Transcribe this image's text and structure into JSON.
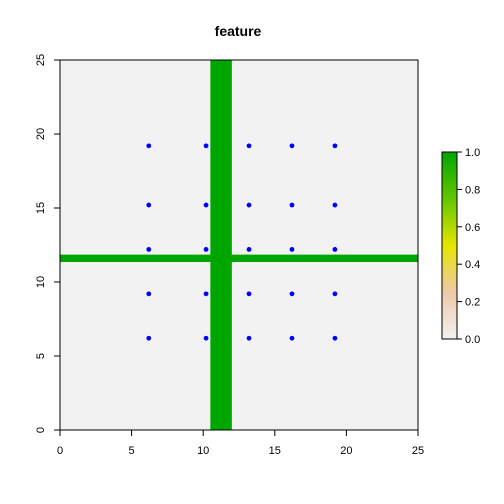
{
  "chart_data": {
    "type": "scatter",
    "title": "feature",
    "xlabel": "",
    "ylabel": "",
    "xlim": [
      0,
      25
    ],
    "ylim": [
      0,
      25
    ],
    "x_ticks": [
      0,
      5,
      10,
      15,
      20,
      25
    ],
    "y_ticks": [
      0,
      5,
      10,
      15,
      20,
      25
    ],
    "background_color": "#f2f2f2",
    "grid": false,
    "raster_features": {
      "color": "#00a600",
      "value": 1.0,
      "vertical_band": {
        "x_range": [
          10.5,
          12.0
        ],
        "y_range": [
          0,
          25
        ]
      },
      "horizontal_band": {
        "x_range": [
          0,
          25
        ],
        "y_range": [
          11.35,
          11.85
        ]
      }
    },
    "points": {
      "color": "#0000ff",
      "x": [
        6.2,
        10.2,
        13.2,
        16.2,
        19.2
      ],
      "y": [
        6.2,
        9.2,
        12.2,
        15.2,
        19.2
      ]
    },
    "colorbar": {
      "range": [
        0,
        1
      ],
      "ticks": [
        "0.0",
        "0.2",
        "0.4",
        "0.6",
        "0.8",
        "1.0"
      ],
      "stops": [
        {
          "value": 0.0,
          "color": "#f2f2f2"
        },
        {
          "value": 0.25,
          "color": "#eec9a8"
        },
        {
          "value": 0.5,
          "color": "#e6e600"
        },
        {
          "value": 0.75,
          "color": "#63c600"
        },
        {
          "value": 1.0,
          "color": "#00a600"
        }
      ]
    }
  }
}
